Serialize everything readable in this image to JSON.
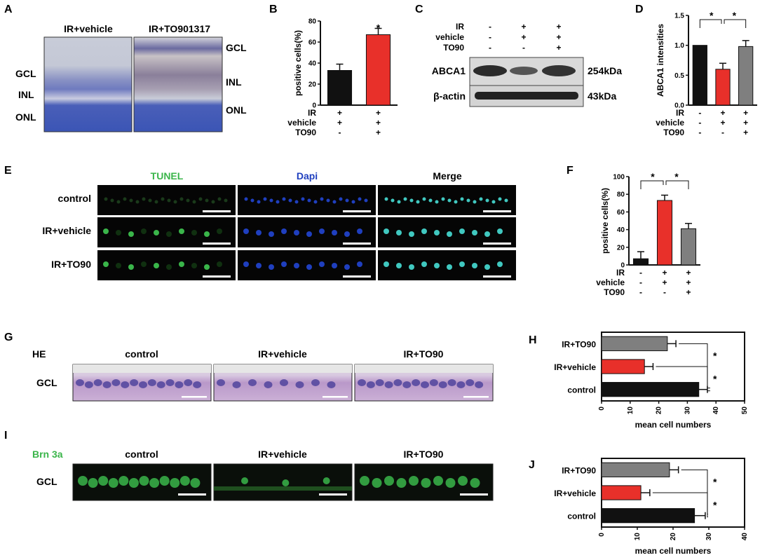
{
  "panels": {
    "A": {
      "letter": "A",
      "col1": "IR+vehicle",
      "col2": "IR+TO901317",
      "layers_left": [
        "GCL",
        "INL",
        "ONL"
      ],
      "layers_right": [
        "GCL",
        "INL",
        "ONL"
      ]
    },
    "C": {
      "letter": "C",
      "conditions": [
        "IR",
        "vehicle",
        "TO90"
      ],
      "signs": [
        [
          "-",
          "+",
          "+"
        ],
        [
          "-",
          "+",
          "+"
        ],
        [
          "-",
          "-",
          "+"
        ]
      ],
      "bands": [
        "ABCA1",
        "β-actin"
      ],
      "sizes": [
        "254kDa",
        "43kDa"
      ]
    },
    "E": {
      "letter": "E",
      "columns": [
        "TUNEL",
        "Dapi",
        "Merge"
      ],
      "rows": [
        "control",
        "IR+vehicle",
        "IR+TO90"
      ]
    },
    "G": {
      "letter": "G",
      "stain": "HE",
      "layer": "GCL",
      "columns": [
        "control",
        "IR+vehicle",
        "IR+TO90"
      ]
    },
    "I": {
      "letter": "I",
      "stain": "Brn 3a",
      "layer": "GCL",
      "columns": [
        "control",
        "IR+vehicle",
        "IR+TO90"
      ]
    }
  },
  "colors": {
    "black": "#111111",
    "red": "#e8302a",
    "gray": "#7f7f7f",
    "tunel": "#3ab54a",
    "dapi": "#1f3fbf",
    "brn3a": "#3ab54a"
  },
  "chart_data": [
    {
      "panel": "B",
      "type": "bar",
      "ylabel": "positive cells(%)",
      "ylim": [
        0,
        80
      ],
      "yticks": [
        0,
        20,
        40,
        60,
        80
      ],
      "conditions": [
        "IR",
        "vehicle",
        "TO90"
      ],
      "signs": [
        [
          "+",
          "+"
        ],
        [
          "+",
          "+"
        ],
        [
          "-",
          "+"
        ]
      ],
      "values": [
        33,
        67
      ],
      "errors": [
        6,
        6
      ],
      "colors": [
        "#111111",
        "#e8302a"
      ],
      "significance": [
        "*"
      ]
    },
    {
      "panel": "D",
      "type": "bar",
      "ylabel": "ABCA1 intensities",
      "ylim": [
        0,
        1.5
      ],
      "yticks": [
        0.0,
        0.5,
        1.0,
        1.5
      ],
      "conditions": [
        "IR",
        "vehicle",
        "TO90"
      ],
      "signs": [
        [
          "-",
          "+",
          "+"
        ],
        [
          "-",
          "+",
          "+"
        ],
        [
          "-",
          "-",
          "+"
        ]
      ],
      "values": [
        1.0,
        0.6,
        0.98
      ],
      "errors": [
        0,
        0.1,
        0.1
      ],
      "colors": [
        "#111111",
        "#e8302a",
        "#7f7f7f"
      ],
      "significance": [
        "*",
        "*"
      ]
    },
    {
      "panel": "F",
      "type": "bar",
      "ylabel": "positive cells(%)",
      "ylim": [
        0,
        100
      ],
      "yticks": [
        0,
        20,
        40,
        60,
        80,
        100
      ],
      "conditions": [
        "IR",
        "vehicle",
        "TO90"
      ],
      "signs": [
        [
          "-",
          "+",
          "+"
        ],
        [
          "-",
          "+",
          "+"
        ],
        [
          "-",
          "-",
          "+"
        ]
      ],
      "values": [
        7,
        73,
        41
      ],
      "errors": [
        8,
        6,
        6
      ],
      "colors": [
        "#111111",
        "#e8302a",
        "#7f7f7f"
      ],
      "significance": [
        "*",
        "*"
      ]
    },
    {
      "panel": "H",
      "type": "bar",
      "orientation": "horizontal",
      "categories": [
        "IR+TO90",
        "IR+vehicle",
        "control"
      ],
      "values": [
        23,
        15,
        34
      ],
      "errors": [
        3,
        3,
        3
      ],
      "colors": [
        "#7f7f7f",
        "#e8302a",
        "#111111"
      ],
      "xlabel": "mean cell numbers",
      "xlim": [
        0,
        50
      ],
      "xticks": [
        0,
        10,
        20,
        30,
        40,
        50
      ],
      "significance": [
        "*",
        "*"
      ]
    },
    {
      "panel": "J",
      "type": "bar",
      "orientation": "horizontal",
      "categories": [
        "IR+TO90",
        "IR+vehicle",
        "control"
      ],
      "values": [
        19,
        11,
        26
      ],
      "errors": [
        2.5,
        2.5,
        3
      ],
      "colors": [
        "#7f7f7f",
        "#e8302a",
        "#111111"
      ],
      "xlabel": "mean cell numbers",
      "xlim": [
        0,
        40
      ],
      "xticks": [
        0,
        10,
        20,
        30,
        40
      ],
      "significance": [
        "*",
        "*"
      ]
    }
  ]
}
